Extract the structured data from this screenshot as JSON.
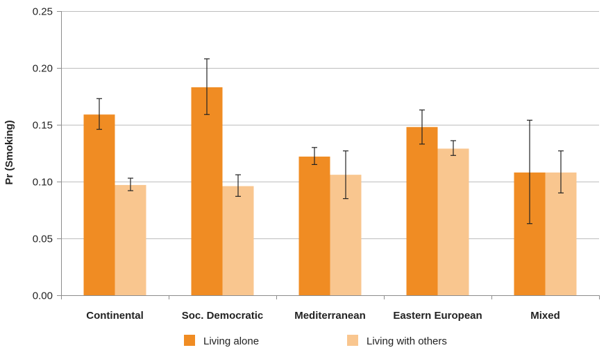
{
  "chart_data": {
    "type": "bar",
    "title": "",
    "xlabel": "",
    "ylabel": "Pr (Smoking)",
    "ylim": [
      0,
      0.25
    ],
    "yticks": [
      "0.00",
      "0.05",
      "0.10",
      "0.15",
      "0.20",
      "0.25"
    ],
    "grid": true,
    "legend_position": "bottom",
    "categories": [
      "Continental",
      "Soc. Democratic",
      "Mediterranean",
      "Eastern European",
      "Mixed"
    ],
    "series": [
      {
        "name": "Living alone",
        "color": "#f08c23",
        "values": [
          0.159,
          0.183,
          0.122,
          0.148,
          0.108
        ],
        "error_low": [
          0.146,
          0.159,
          0.115,
          0.133,
          0.063
        ],
        "error_high": [
          0.173,
          0.208,
          0.13,
          0.163,
          0.154
        ]
      },
      {
        "name": "Living with others",
        "color": "#f9c68f",
        "values": [
          0.097,
          0.096,
          0.106,
          0.129,
          0.108
        ],
        "error_low": [
          0.092,
          0.087,
          0.085,
          0.123,
          0.09
        ],
        "error_high": [
          0.103,
          0.106,
          0.127,
          0.136,
          0.127
        ]
      }
    ]
  }
}
